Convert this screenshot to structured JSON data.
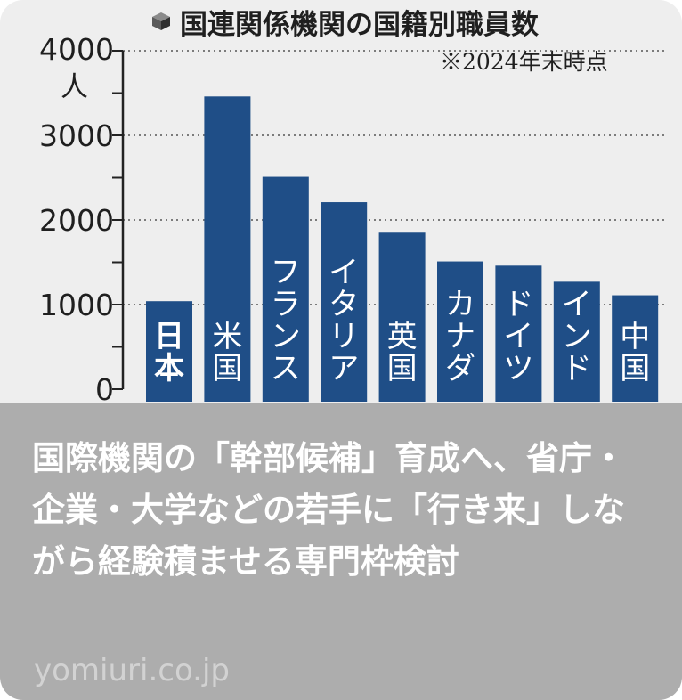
{
  "chart_data": {
    "type": "bar",
    "title": "国連関係機関の国籍別職員数",
    "note": "※2024年末時点",
    "ylabel": "人",
    "ylim": [
      0,
      4000
    ],
    "yticks": [
      "0",
      "1000",
      "2000",
      "3000",
      "4000"
    ],
    "yticks_values": [
      0,
      1000,
      2000,
      3000,
      4000
    ],
    "grid": true,
    "bar_color": "#1f4e87",
    "categories": [
      "日本",
      "米国",
      "フランス",
      "イタリア",
      "英国",
      "カナダ",
      "ドイツ",
      "インド",
      "中国"
    ],
    "values": [
      1040,
      3460,
      2510,
      2210,
      1850,
      1510,
      1460,
      1270,
      1110
    ]
  },
  "headline": "国際機関の「幹部候補」育成へ、省庁・企業・大学などの若手に「行き来」しながら経験積ませる専門枠検討",
  "source": "yomiuri.co.jp"
}
